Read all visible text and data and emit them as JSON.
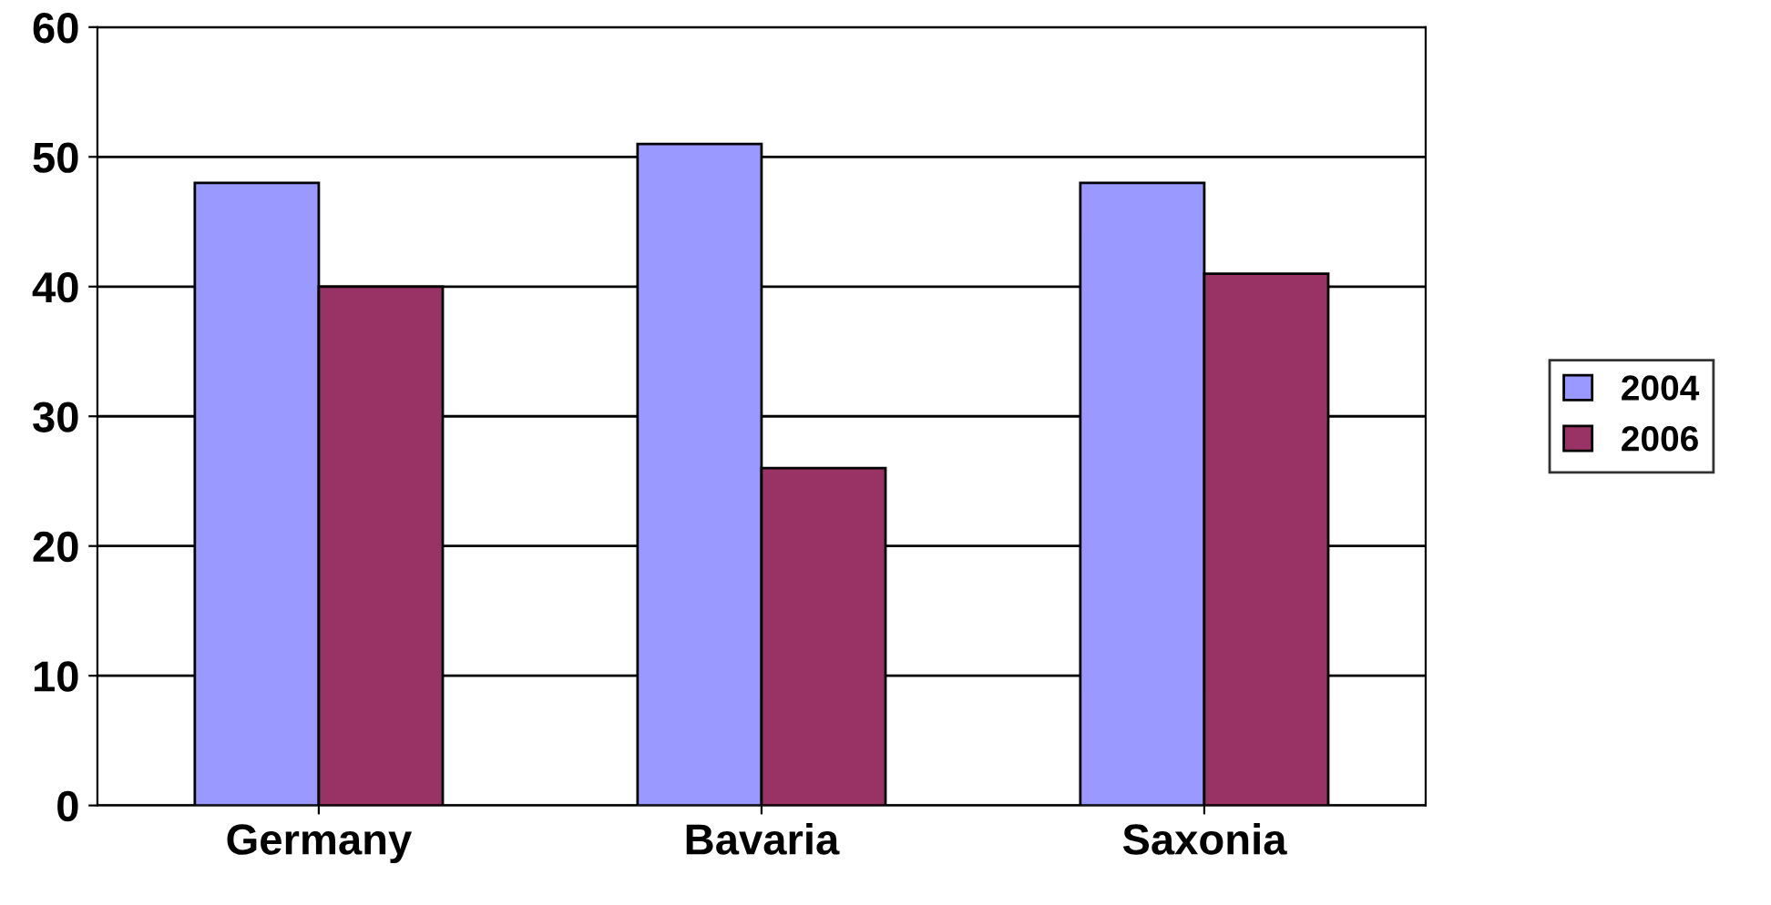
{
  "chart_data": {
    "type": "bar",
    "categories": [
      "Germany",
      "Bavaria",
      "Saxonia"
    ],
    "series": [
      {
        "name": "2004",
        "color": "#9999ff",
        "values": [
          48,
          51,
          48
        ]
      },
      {
        "name": "2006",
        "color": "#993366",
        "values": [
          40,
          26,
          41
        ]
      }
    ],
    "ylim": [
      0,
      60
    ],
    "yticks": [
      0,
      10,
      20,
      30,
      40,
      50,
      60
    ],
    "grid": "y",
    "legend": "right"
  }
}
